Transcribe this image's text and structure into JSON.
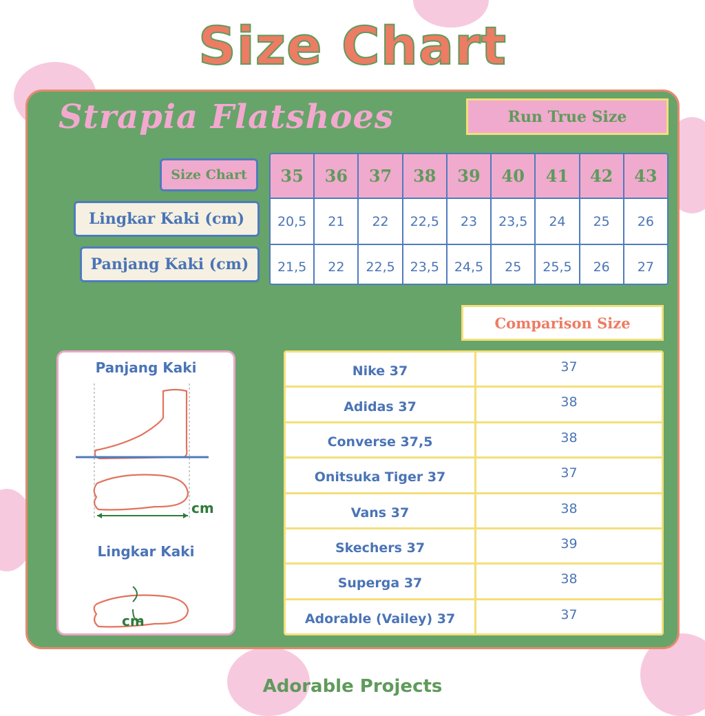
{
  "title": "Size Chart",
  "brand": "Strapia Flatshoes",
  "fit_badge": "Run True Size",
  "size_table": {
    "header_label": "Size Chart",
    "sizes": [
      "35",
      "36",
      "37",
      "38",
      "39",
      "40",
      "41",
      "42",
      "43"
    ],
    "rows": [
      {
        "label": "Lingkar Kaki (cm)",
        "values": [
          "20,5",
          "21",
          "22",
          "22,5",
          "23",
          "23,5",
          "24",
          "25",
          "26"
        ]
      },
      {
        "label": "Panjang Kaki (cm)",
        "values": [
          "21,5",
          "22",
          "22,5",
          "23,5",
          "24,5",
          "25",
          "25,5",
          "26",
          "27"
        ]
      }
    ]
  },
  "guide": {
    "length_label": "Panjang Kaki",
    "width_label": "Lingkar Kaki",
    "unit": "cm"
  },
  "comparison": {
    "title": "Comparison Size",
    "rows": [
      {
        "brand": "Nike 37",
        "size": "37"
      },
      {
        "brand": "Adidas 37",
        "size": "38"
      },
      {
        "brand": "Converse 37,5",
        "size": "38"
      },
      {
        "brand": "Onitsuka Tiger 37",
        "size": "37"
      },
      {
        "brand": "Vans 37",
        "size": "38"
      },
      {
        "brand": "Skechers 37",
        "size": "39"
      },
      {
        "brand": "Superga 37",
        "size": "38"
      },
      {
        "brand": "Adorable (Vailey) 37",
        "size": "37"
      }
    ]
  },
  "footer": "Adorable Projects",
  "colors": {
    "panel": "#67a46a",
    "pink": "#f0aacd",
    "salmon": "#ec7c64",
    "blue": "#4a74b6",
    "yellow": "#f3df7a"
  }
}
